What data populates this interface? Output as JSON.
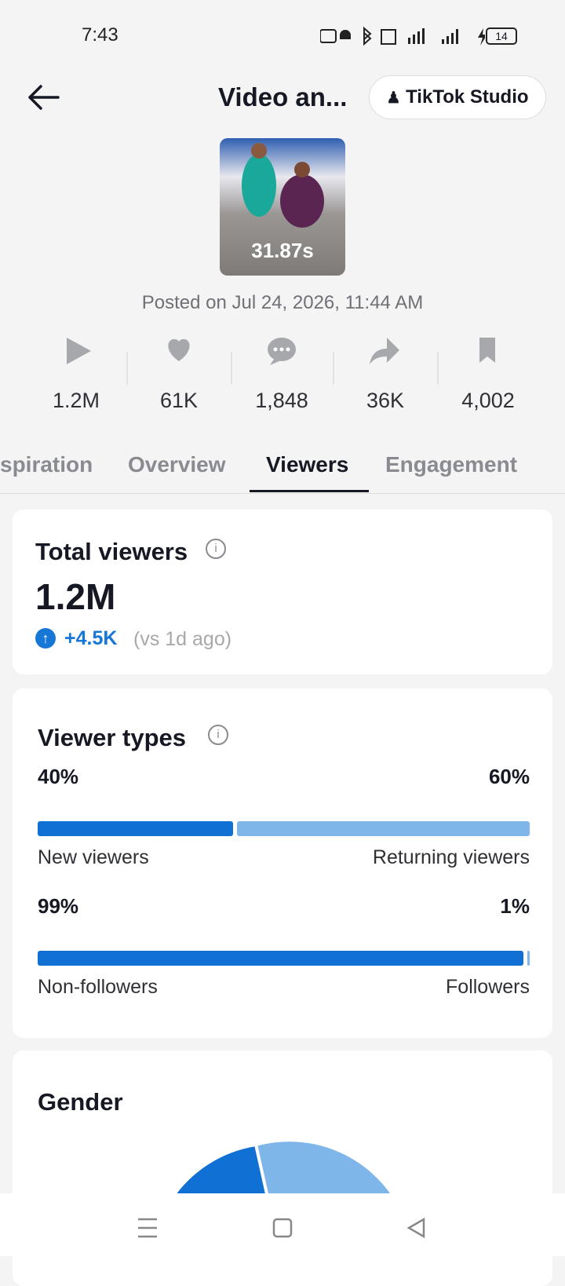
{
  "status_bar": {
    "time": "7:43",
    "battery": "14"
  },
  "header": {
    "title": "Video an...",
    "studio_button": "TikTok Studio"
  },
  "video": {
    "duration": "31.87s",
    "posted": "Posted on Jul 24, 2026, 11:44 AM"
  },
  "stats": [
    "1.2M",
    "61K",
    "1,848",
    "36K",
    "4,002"
  ],
  "tabs": [
    "spiration",
    "Overview",
    "Viewers",
    "Engagement"
  ],
  "total_viewers": {
    "title": "Total viewers",
    "value": "1.2M",
    "change": "+4.5K",
    "comparison": "(vs 1d ago)"
  },
  "viewer_types": {
    "title": "Viewer types",
    "rows": [
      {
        "left": {
          "value": 40,
          "label": "40%"
        },
        "right": {
          "value": 60,
          "label": "60%"
        },
        "left_name": "New viewers",
        "right_name": "Returning viewers"
      },
      {
        "left": {
          "value": 99,
          "label": "99%"
        },
        "right": {
          "value": 1,
          "label": "1%"
        },
        "left_name": "Non-followers",
        "right_name": "Followers"
      }
    ]
  },
  "gender": {
    "title": "Gender"
  }
}
